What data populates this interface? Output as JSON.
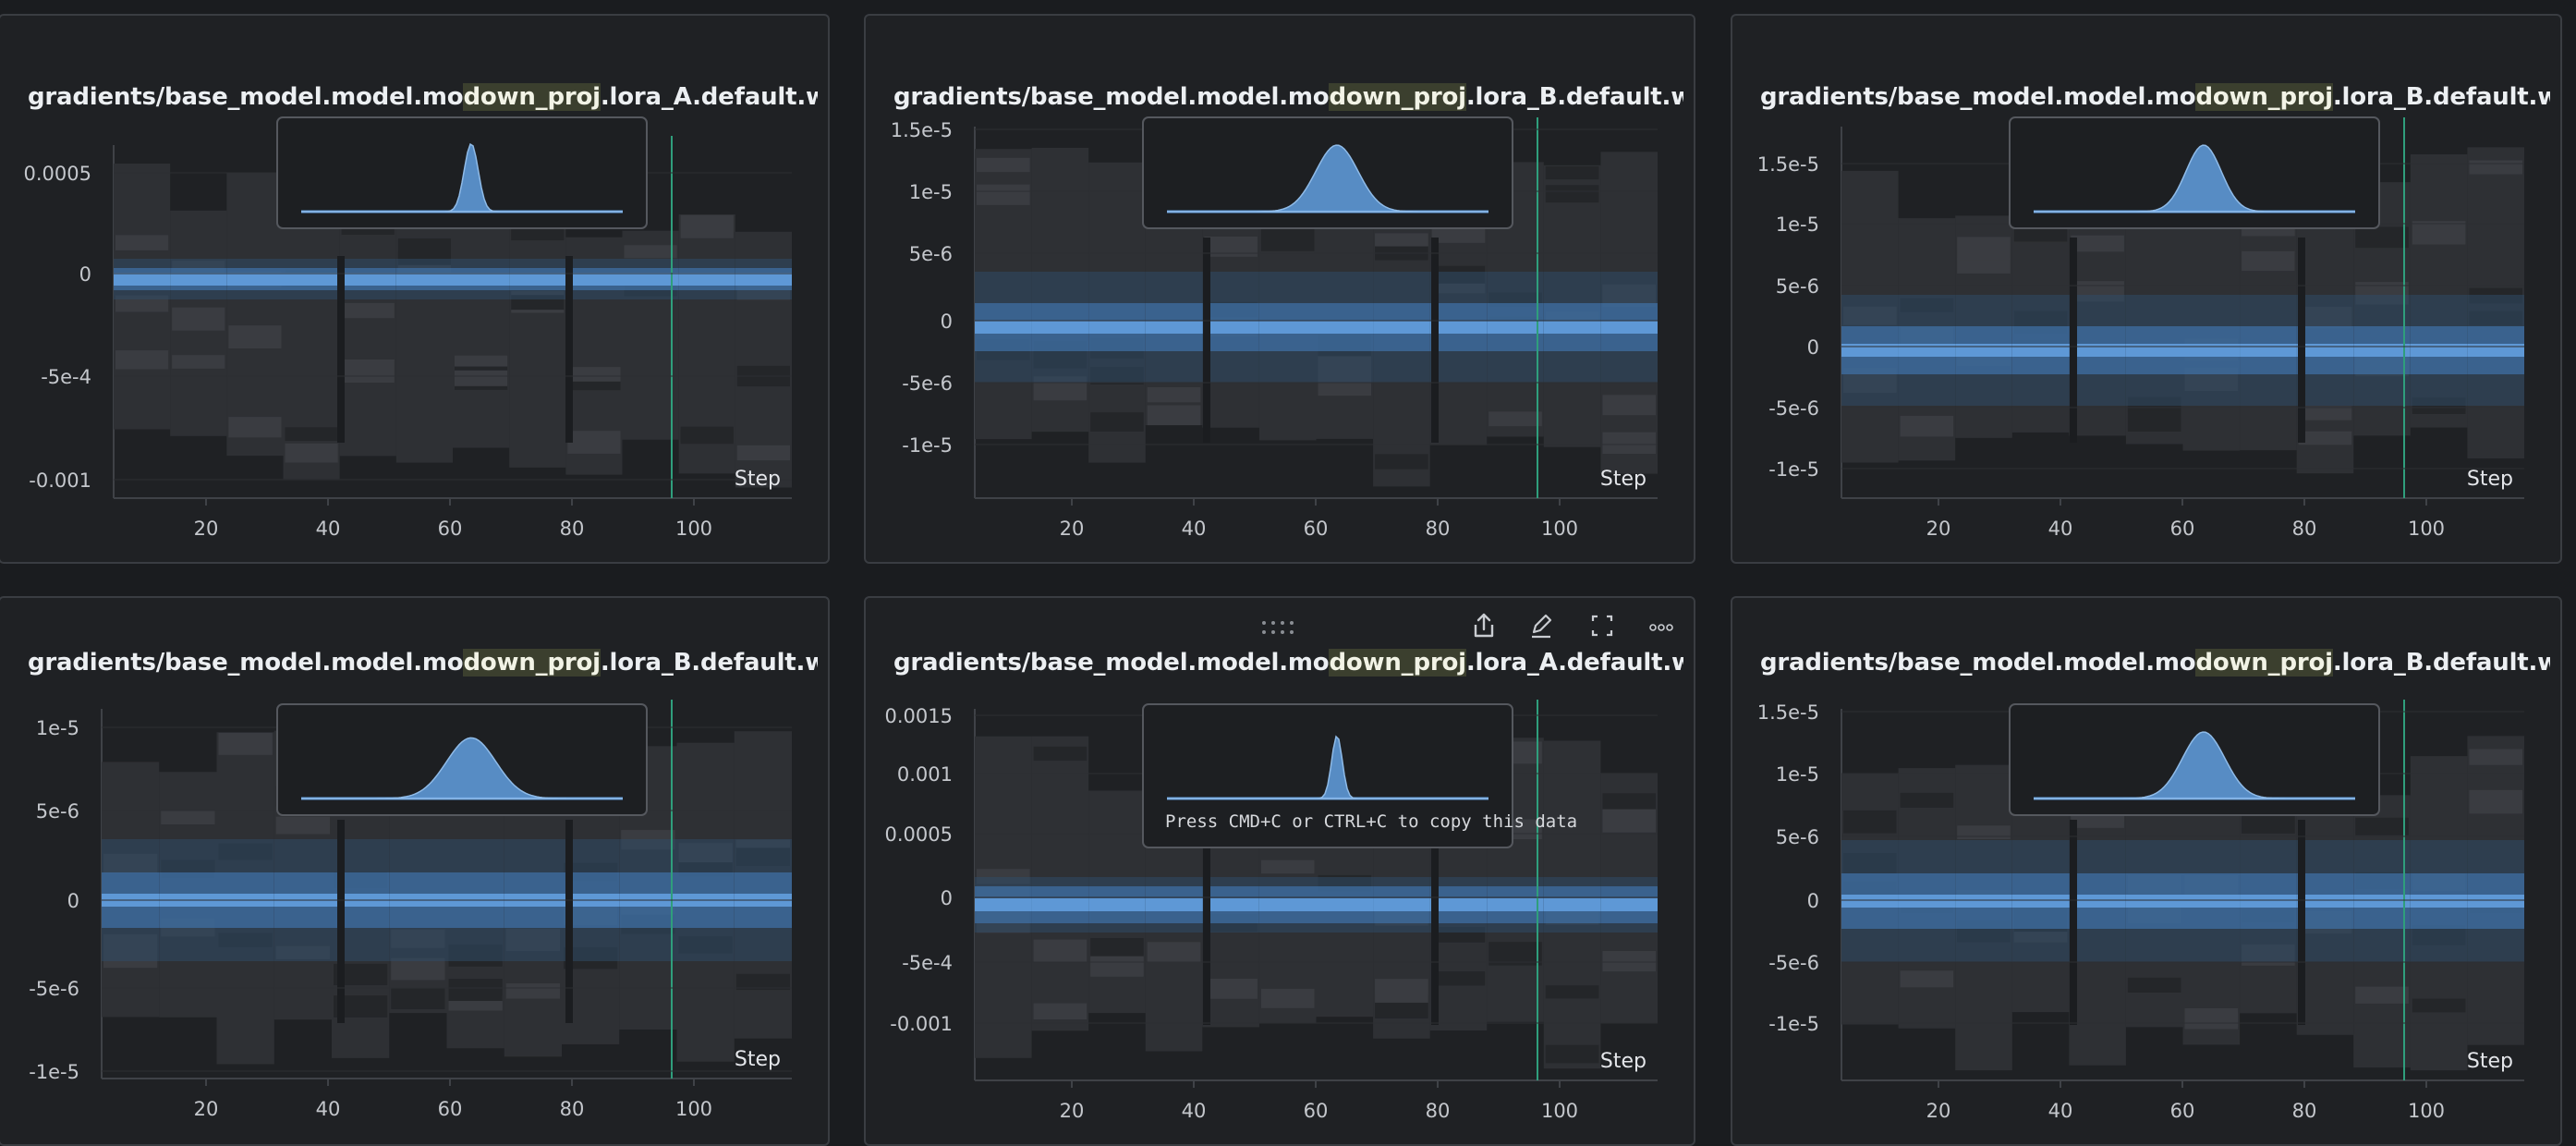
{
  "colors": {
    "background": "#1a1c1f",
    "panel_bg": "#1f2124",
    "panel_border": "#3a3d42",
    "histogram_blue": "#5e98d6",
    "step_line": "#2f9e7c",
    "heat_dark": "#2b2d31"
  },
  "toolbar": {
    "drag_label": "::::",
    "share_icon": "share-icon",
    "edit_icon": "pencil-icon",
    "fullscreen_icon": "fullscreen-icon",
    "more_icon": "more-icon"
  },
  "tooltip": {
    "text": "Press CMD+C or CTRL+C to copy this data"
  },
  "panels": [
    {
      "title_prefix": "gradients/base_model.model.mo",
      "title_mid": "down_proj",
      "title_suffix": ".lora_A.default.weight",
      "step_label": "Step",
      "y_ticks": [
        "0.0005",
        "0",
        "-5e-4",
        "-0.001"
      ],
      "x_ticks": [
        "20",
        "40",
        "60",
        "80",
        "100"
      ]
    },
    {
      "title_prefix": "gradients/base_model.model.mo",
      "title_mid": "down_proj",
      "title_suffix": ".lora_B.default.weight",
      "step_label": "Step",
      "y_ticks": [
        "1.5e-5",
        "1e-5",
        "5e-6",
        "0",
        "-5e-6",
        "-1e-5"
      ],
      "x_ticks": [
        "20",
        "40",
        "60",
        "80",
        "100"
      ]
    },
    {
      "title_prefix": "gradients/base_model.model.mo",
      "title_mid": "down_proj",
      "title_suffix": ".lora_B.default.weight",
      "step_label": "Step",
      "y_ticks": [
        "1.5e-5",
        "1e-5",
        "5e-6",
        "0",
        "-5e-6",
        "-1e-5"
      ],
      "x_ticks": [
        "20",
        "40",
        "60",
        "80",
        "100"
      ]
    },
    {
      "title_prefix": "gradients/base_model.model.mo",
      "title_mid": "down_proj",
      "title_suffix": ".lora_B.default.weight",
      "step_label": "Step",
      "y_ticks": [
        "1e-5",
        "5e-6",
        "0",
        "-5e-6",
        "-1e-5"
      ],
      "x_ticks": [
        "20",
        "40",
        "60",
        "80",
        "100"
      ]
    },
    {
      "title_prefix": "gradients/base_model.model.mo",
      "title_mid": "down_proj",
      "title_suffix": ".lora_A.default.weight",
      "step_label": "Step",
      "y_ticks": [
        "0.0015",
        "0.001",
        "0.0005",
        "0",
        "-5e-4",
        "-0.001"
      ],
      "x_ticks": [
        "20",
        "40",
        "60",
        "80",
        "100"
      ]
    },
    {
      "title_prefix": "gradients/base_model.model.mo",
      "title_mid": "down_proj",
      "title_suffix": ".lora_B.default.weight",
      "step_label": "Step",
      "y_ticks": [
        "1.5e-5",
        "1e-5",
        "5e-6",
        "0",
        "-5e-6",
        "-1e-5"
      ],
      "x_ticks": [
        "20",
        "40",
        "60",
        "80",
        "100"
      ]
    }
  ],
  "chart_data": [
    {
      "type": "heatmap",
      "xlabel": "Step",
      "x_ticks": [
        20,
        40,
        60,
        80,
        100
      ],
      "y_ticks": [
        0.0005,
        0,
        -0.0005,
        -0.001
      ],
      "ylim": [
        -0.001,
        0.0006
      ],
      "current_step": 97
    },
    {
      "type": "heatmap",
      "xlabel": "Step",
      "x_ticks": [
        20,
        40,
        60,
        80,
        100
      ],
      "y_ticks": [
        1.5e-05,
        1e-05,
        5e-06,
        0,
        -5e-06,
        -1e-05
      ],
      "ylim": [
        -1.3e-05,
        1.6e-05
      ],
      "current_step": 97
    },
    {
      "type": "heatmap",
      "xlabel": "Step",
      "x_ticks": [
        20,
        40,
        60,
        80,
        100
      ],
      "y_ticks": [
        1.5e-05,
        1e-05,
        5e-06,
        0,
        -5e-06,
        -1e-05
      ],
      "ylim": [
        -1.2e-05,
        1.7e-05
      ],
      "current_step": 97
    },
    {
      "type": "heatmap",
      "xlabel": "Step",
      "x_ticks": [
        20,
        40,
        60,
        80,
        100
      ],
      "y_ticks": [
        1e-05,
        5e-06,
        0,
        -5e-06,
        -1e-05
      ],
      "ylim": [
        -1.05e-05,
        1.2e-05
      ],
      "current_step": 97
    },
    {
      "type": "heatmap",
      "xlabel": "Step",
      "x_ticks": [
        20,
        40,
        60,
        80,
        100
      ],
      "y_ticks": [
        0.0015,
        0.001,
        0.0005,
        0,
        -0.0005,
        -0.001
      ],
      "ylim": [
        -0.0013,
        0.0016
      ],
      "current_step": 97
    },
    {
      "type": "heatmap",
      "xlabel": "Step",
      "x_ticks": [
        20,
        40,
        60,
        80,
        100
      ],
      "y_ticks": [
        1.5e-05,
        1e-05,
        5e-06,
        0,
        -5e-06,
        -1e-05
      ],
      "ylim": [
        -1.3e-05,
        1.6e-05
      ],
      "current_step": 97
    }
  ]
}
